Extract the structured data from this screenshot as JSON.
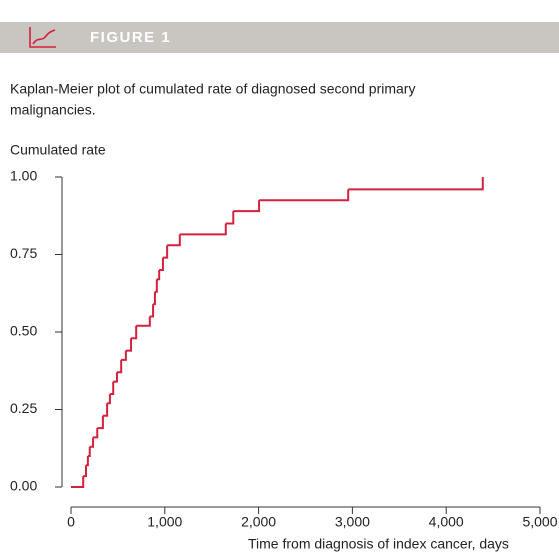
{
  "header": {
    "label": "FIGURE 1"
  },
  "chart_data": {
    "type": "step",
    "title": "Kaplan-Meier plot of cumulated rate of diagnosed second primary",
    "title_line2": "malignancies.",
    "y_label": "Cumulated rate",
    "x_label": "Time from diagnosis of index cancer, days",
    "color": "#d4213d",
    "x": [
      0,
      130,
      160,
      180,
      200,
      235,
      280,
      340,
      385,
      415,
      450,
      490,
      535,
      585,
      640,
      695,
      840,
      875,
      895,
      915,
      940,
      980,
      1025,
      1160,
      1650,
      1730,
      2005,
      2955,
      4390
    ],
    "y": [
      0,
      0.035,
      0.07,
      0.1,
      0.13,
      0.16,
      0.19,
      0.23,
      0.27,
      0.3,
      0.34,
      0.37,
      0.41,
      0.44,
      0.48,
      0.52,
      0.55,
      0.59,
      0.63,
      0.67,
      0.7,
      0.74,
      0.78,
      0.815,
      0.85,
      0.89,
      0.925,
      0.96,
      1.0
    ],
    "xlim": [
      0,
      5000
    ],
    "ylim": [
      0,
      1
    ],
    "xticks": [
      0,
      {
        "value": 1000,
        "label": "1,000"
      },
      {
        "value": 2000,
        "label": "2,000"
      },
      {
        "value": 3000,
        "label": "3,000"
      },
      {
        "value": 4000,
        "label": "4,000"
      },
      {
        "value": 5000,
        "label": "5,000"
      }
    ],
    "yticks": [
      {
        "value": 0,
        "label": "0.00"
      },
      {
        "value": 0.25,
        "label": "0.25"
      },
      {
        "value": 0.5,
        "label": "0.50"
      },
      {
        "value": 0.75,
        "label": "0.75"
      },
      {
        "value": 1,
        "label": "1.00"
      }
    ]
  }
}
